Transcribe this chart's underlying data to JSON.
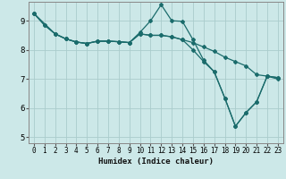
{
  "title": "",
  "xlabel": "Humidex (Indice chaleur)",
  "ylabel": "",
  "bg_color": "#cce8e8",
  "grid_color": "#aacccc",
  "line_color": "#1a6b6b",
  "xlim": [
    -0.5,
    23.5
  ],
  "ylim": [
    4.8,
    9.65
  ],
  "xticks": [
    0,
    1,
    2,
    3,
    4,
    5,
    6,
    7,
    8,
    9,
    10,
    11,
    12,
    13,
    14,
    15,
    16,
    17,
    18,
    19,
    20,
    21,
    22,
    23
  ],
  "yticks": [
    5,
    6,
    7,
    8,
    9
  ],
  "line1_x": [
    0,
    1,
    2,
    3,
    4,
    5,
    6,
    7,
    8,
    9,
    10,
    11,
    12,
    13,
    14,
    15,
    16,
    17,
    18,
    19,
    20,
    21,
    22,
    23
  ],
  "line1_y": [
    9.25,
    8.85,
    8.55,
    8.38,
    8.27,
    8.22,
    8.3,
    8.3,
    8.28,
    8.25,
    8.6,
    9.0,
    9.55,
    9.0,
    8.98,
    8.35,
    7.65,
    7.25,
    6.35,
    5.38,
    5.85,
    6.22,
    7.1,
    7.05
  ],
  "line2_x": [
    0,
    1,
    2,
    3,
    4,
    5,
    6,
    7,
    8,
    9,
    10,
    11,
    12,
    13,
    14,
    15,
    16,
    17,
    18,
    19,
    20,
    21,
    22,
    23
  ],
  "line2_y": [
    9.25,
    8.85,
    8.55,
    8.38,
    8.27,
    8.22,
    8.3,
    8.3,
    8.28,
    8.25,
    8.55,
    8.5,
    8.5,
    8.45,
    8.35,
    8.25,
    8.1,
    7.95,
    7.75,
    7.6,
    7.45,
    7.15,
    7.1,
    7.0
  ],
  "line3_x": [
    0,
    2,
    3,
    4,
    5,
    6,
    7,
    8,
    9,
    10,
    11,
    12,
    13,
    14,
    15,
    16,
    17,
    18,
    19,
    20,
    21,
    22,
    23
  ],
  "line3_y": [
    9.25,
    8.55,
    8.38,
    8.27,
    8.22,
    8.3,
    8.3,
    8.28,
    8.25,
    8.55,
    8.5,
    8.5,
    8.45,
    8.35,
    8.0,
    7.6,
    7.25,
    6.35,
    5.38,
    5.85,
    6.22,
    7.1,
    7.05
  ]
}
